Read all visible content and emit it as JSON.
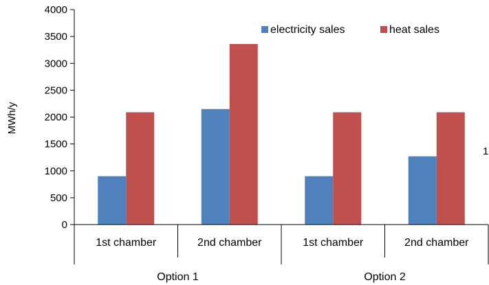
{
  "chart_data": {
    "type": "bar",
    "title": "",
    "ylabel": "MWh/y",
    "xlabel": "",
    "ylim": [
      0,
      4000
    ],
    "yticks": [
      0,
      500,
      1000,
      1500,
      2000,
      2500,
      3000,
      3500,
      4000
    ],
    "categories": [
      "1st chamber",
      "2nd chamber",
      "1st chamber",
      "2nd chamber"
    ],
    "groups": [
      {
        "label": "Option 1",
        "span": [
          0,
          1
        ]
      },
      {
        "label": "Option 2",
        "span": [
          2,
          3
        ]
      }
    ],
    "series": [
      {
        "name": "electricity sales",
        "color": "#4f81bd",
        "values": [
          900,
          2150,
          900,
          1270
        ]
      },
      {
        "name": "heat sales",
        "color": "#c0504d",
        "values": [
          2090,
          3360,
          2090,
          2090
        ]
      }
    ],
    "legend": "top-right",
    "grid": false
  },
  "stray_text": "1"
}
